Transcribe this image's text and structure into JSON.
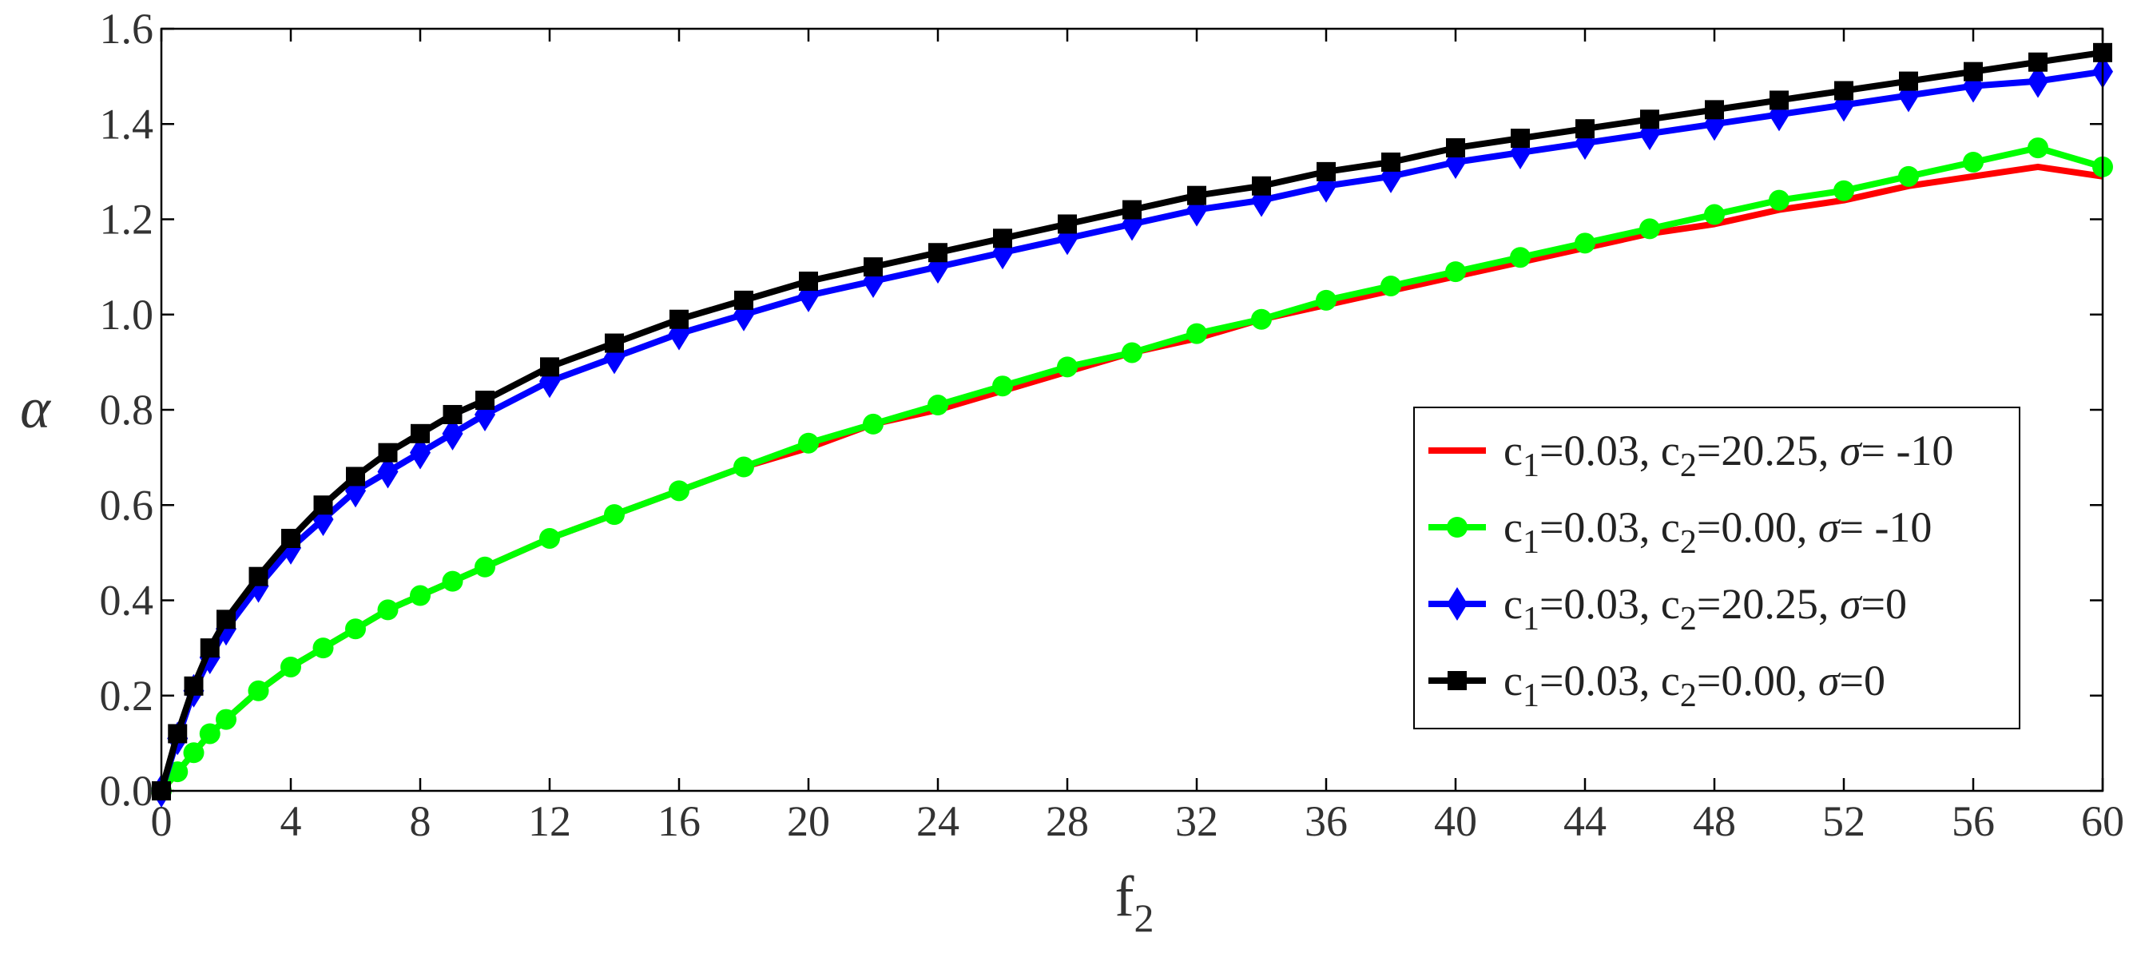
{
  "chart_data": {
    "type": "line",
    "title": "",
    "xlabel": "f",
    "xlabel_sub": "2",
    "ylabel": "α",
    "xlim": [
      0,
      60
    ],
    "ylim": [
      0,
      1.6
    ],
    "x_ticks": [
      "0",
      "4",
      "8",
      "12",
      "16",
      "20",
      "24",
      "28",
      "32",
      "36",
      "40",
      "44",
      "48",
      "52",
      "56",
      "60"
    ],
    "y_ticks": [
      "0.0",
      "0.2",
      "0.4",
      "0.6",
      "0.8",
      "1.0",
      "1.2",
      "1.4",
      "1.6"
    ],
    "grid": false,
    "legend_position": "center-right",
    "x": [
      0,
      0.5,
      1,
      1.5,
      2,
      3,
      4,
      5,
      6,
      7,
      8,
      9,
      10,
      12,
      14,
      16,
      18,
      20,
      22,
      24,
      26,
      28,
      30,
      32,
      34,
      36,
      38,
      40,
      42,
      44,
      46,
      48,
      50,
      52,
      54,
      56,
      58,
      60
    ],
    "series": [
      {
        "label_parts": [
          {
            "t": "c"
          },
          {
            "t": "1",
            "sub": true
          },
          {
            "t": "=0.03, c"
          },
          {
            "t": "2",
            "sub": true
          },
          {
            "t": "=20.25, "
          },
          {
            "t": "σ",
            "italic": true
          },
          {
            "t": "= -10"
          }
        ],
        "color": "#ff0000",
        "marker": "none",
        "values": [
          0,
          0.04,
          0.08,
          0.12,
          0.15,
          0.21,
          0.26,
          0.3,
          0.34,
          0.38,
          0.41,
          0.44,
          0.47,
          0.53,
          0.58,
          0.63,
          0.68,
          0.72,
          0.77,
          0.8,
          0.84,
          0.88,
          0.92,
          0.95,
          0.99,
          1.02,
          1.05,
          1.08,
          1.11,
          1.14,
          1.17,
          1.19,
          1.22,
          1.24,
          1.27,
          1.29,
          1.31,
          1.29
        ]
      },
      {
        "label_parts": [
          {
            "t": "c"
          },
          {
            "t": "1",
            "sub": true
          },
          {
            "t": "=0.03, c"
          },
          {
            "t": "2",
            "sub": true
          },
          {
            "t": "=0.00, "
          },
          {
            "t": "σ",
            "italic": true
          },
          {
            "t": "= -10"
          }
        ],
        "color": "#00ff00",
        "marker": "circle",
        "values": [
          0,
          0.04,
          0.08,
          0.12,
          0.15,
          0.21,
          0.26,
          0.3,
          0.34,
          0.38,
          0.41,
          0.44,
          0.47,
          0.53,
          0.58,
          0.63,
          0.68,
          0.73,
          0.77,
          0.81,
          0.85,
          0.89,
          0.92,
          0.96,
          0.99,
          1.03,
          1.06,
          1.09,
          1.12,
          1.15,
          1.18,
          1.21,
          1.24,
          1.26,
          1.29,
          1.32,
          1.35,
          1.31
        ]
      },
      {
        "label_parts": [
          {
            "t": "c"
          },
          {
            "t": "1",
            "sub": true
          },
          {
            "t": "=0.03, c"
          },
          {
            "t": "2",
            "sub": true
          },
          {
            "t": "=20.25, "
          },
          {
            "t": "σ",
            "italic": true
          },
          {
            "t": "=0"
          }
        ],
        "color": "#0000ff",
        "marker": "diamond",
        "values": [
          0,
          0.11,
          0.21,
          0.28,
          0.34,
          0.43,
          0.51,
          0.57,
          0.63,
          0.67,
          0.71,
          0.75,
          0.79,
          0.86,
          0.91,
          0.96,
          1.0,
          1.04,
          1.07,
          1.1,
          1.13,
          1.16,
          1.19,
          1.22,
          1.24,
          1.27,
          1.29,
          1.32,
          1.34,
          1.36,
          1.38,
          1.4,
          1.42,
          1.44,
          1.46,
          1.48,
          1.49,
          1.51
        ]
      },
      {
        "label_parts": [
          {
            "t": "c"
          },
          {
            "t": "1",
            "sub": true
          },
          {
            "t": "=0.03, c"
          },
          {
            "t": "2",
            "sub": true
          },
          {
            "t": "=0.00, "
          },
          {
            "t": "σ",
            "italic": true
          },
          {
            "t": "=0"
          }
        ],
        "color": "#000000",
        "marker": "square",
        "values": [
          0,
          0.12,
          0.22,
          0.3,
          0.36,
          0.45,
          0.53,
          0.6,
          0.66,
          0.71,
          0.75,
          0.79,
          0.82,
          0.89,
          0.94,
          0.99,
          1.03,
          1.07,
          1.1,
          1.13,
          1.16,
          1.19,
          1.22,
          1.25,
          1.27,
          1.3,
          1.32,
          1.35,
          1.37,
          1.39,
          1.41,
          1.43,
          1.45,
          1.47,
          1.49,
          1.51,
          1.53,
          1.55
        ]
      }
    ]
  }
}
